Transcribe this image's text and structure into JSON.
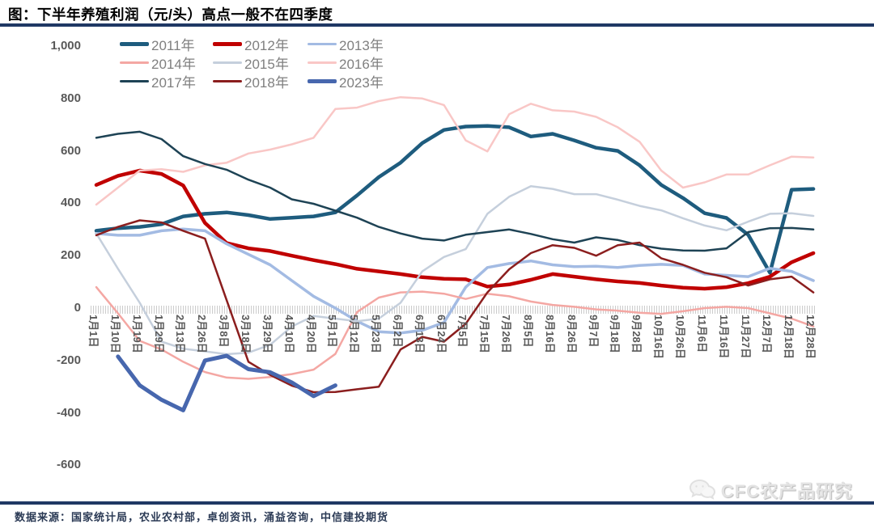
{
  "header": {
    "title": "图：下半年养殖利润（元/头）高点一般不在四季度"
  },
  "footer": {
    "source": "数据来源：国家统计局，农业农村部，卓创资讯，涌益咨询，中信建投期货"
  },
  "watermark": {
    "label": "CFC农产品研究",
    "icon": "wechat-chat-bubbles-icon"
  },
  "colors": {
    "rule": "#1F3864",
    "axis_text": "#595959",
    "legend_text": "#7F7F7F",
    "hatch": "#CCCCCC",
    "title_text": "#000000"
  },
  "chart_data": {
    "type": "line",
    "title": "图：下半年养殖利润（元/头）高点一般不在四季度",
    "xlabel": "",
    "ylabel": "元/头",
    "ylim": [
      -600,
      1000
    ],
    "grid": false,
    "legend_position": "top",
    "y_ticks": [
      {
        "v": 1000,
        "label": "1,000"
      },
      {
        "v": 800,
        "label": "800"
      },
      {
        "v": 600,
        "label": "600"
      },
      {
        "v": 400,
        "label": "400"
      },
      {
        "v": 200,
        "label": "200"
      },
      {
        "v": 0,
        "label": "0"
      },
      {
        "v": -200,
        "label": "-200"
      },
      {
        "v": -400,
        "label": "-400"
      },
      {
        "v": -600,
        "label": "-600"
      }
    ],
    "x_labels": [
      "1月1日",
      "1月10日",
      "1月19日",
      "1月29日",
      "2月13日",
      "2月26日",
      "3月8日",
      "3月18日",
      "3月29日",
      "4月10日",
      "4月20日",
      "5月1日",
      "5月12日",
      "5月23日",
      "6月2日",
      "6月13日",
      "6月24日",
      "7月5日",
      "7月15日",
      "7月26日",
      "8月5日",
      "8月16日",
      "8月26日",
      "9月7日",
      "9月18日",
      "9月28日",
      "10月16日",
      "10月26日",
      "11月6日",
      "11月16日",
      "11月27日",
      "12月7日",
      "12月18日",
      "12月28日"
    ],
    "series": [
      {
        "name": "2011年",
        "color": "#1E5C7E",
        "width": 4.5,
        "values": [
          295,
          305,
          310,
          320,
          350,
          360,
          365,
          355,
          340,
          345,
          350,
          365,
          430,
          500,
          555,
          630,
          680,
          693,
          695,
          690,
          655,
          665,
          640,
          612,
          600,
          545,
          470,
          420,
          362,
          344,
          280,
          135,
          452,
          455
        ]
      },
      {
        "name": "2012年",
        "color": "#C00000",
        "width": 4.5,
        "values": [
          470,
          505,
          525,
          512,
          468,
          325,
          248,
          228,
          218,
          200,
          183,
          168,
          150,
          140,
          130,
          118,
          112,
          110,
          82,
          90,
          108,
          130,
          120,
          110,
          102,
          96,
          86,
          78,
          74,
          80,
          95,
          120,
          175,
          210
        ]
      },
      {
        "name": "2013年",
        "color": "#A3BBE3",
        "width": 3.5,
        "values": [
          285,
          278,
          278,
          295,
          302,
          295,
          245,
          205,
          165,
          105,
          45,
          0,
          -50,
          -90,
          -95,
          -85,
          -55,
          80,
          155,
          170,
          180,
          165,
          158,
          160,
          155,
          163,
          167,
          163,
          130,
          125,
          120,
          152,
          140,
          105
        ]
      },
      {
        "name": "2014年",
        "color": "#F4A7A3",
        "width": 2.5,
        "values": [
          80,
          -20,
          -125,
          -158,
          -205,
          -244,
          -265,
          -270,
          -263,
          -252,
          -235,
          -175,
          -15,
          40,
          60,
          63,
          55,
          35,
          55,
          45,
          25,
          12,
          5,
          -5,
          -10,
          -18,
          -22,
          -12,
          0,
          5,
          0,
          -20,
          -40,
          -70
        ]
      },
      {
        "name": "2015年",
        "color": "#C5CFDC",
        "width": 2.5,
        "values": [
          285,
          150,
          20,
          -128,
          -155,
          -165,
          -176,
          -170,
          -140,
          -70,
          -30,
          -40,
          -50,
          -40,
          20,
          140,
          195,
          225,
          360,
          425,
          465,
          455,
          435,
          435,
          414,
          390,
          373,
          343,
          315,
          297,
          330,
          360,
          362,
          352
        ]
      },
      {
        "name": "2016年",
        "color": "#F9C7C6",
        "width": 2.5,
        "values": [
          395,
          460,
          525,
          530,
          520,
          545,
          555,
          590,
          605,
          625,
          650,
          760,
          765,
          790,
          805,
          800,
          775,
          640,
          598,
          740,
          780,
          755,
          750,
          730,
          690,
          635,
          525,
          460,
          480,
          510,
          510,
          545,
          578,
          575
        ]
      },
      {
        "name": "2017年",
        "color": "#1E4355",
        "width": 2.5,
        "values": [
          650,
          665,
          673,
          645,
          580,
          550,
          528,
          490,
          460,
          415,
          398,
          372,
          345,
          310,
          285,
          265,
          258,
          280,
          290,
          300,
          283,
          263,
          250,
          270,
          260,
          240,
          227,
          220,
          219,
          228,
          290,
          305,
          306,
          300
        ]
      },
      {
        "name": "2018年",
        "color": "#8B1E1E",
        "width": 2.5,
        "values": [
          278,
          310,
          335,
          327,
          295,
          265,
          30,
          -205,
          -255,
          -296,
          -321,
          -320,
          -310,
          -300,
          -158,
          -110,
          -128,
          -60,
          60,
          148,
          210,
          240,
          230,
          200,
          240,
          250,
          190,
          165,
          135,
          118,
          86,
          110,
          120,
          60
        ]
      },
      {
        "name": "2023年",
        "color": "#4767AE",
        "width": 5,
        "values": [
          null,
          -185,
          -295,
          -350,
          -390,
          -200,
          -182,
          -233,
          -245,
          -284,
          -336,
          -295,
          null,
          null,
          null,
          null,
          null,
          null,
          null,
          null,
          null,
          null,
          null,
          null,
          null,
          null,
          null,
          null,
          null,
          null,
          null,
          null,
          null,
          null
        ]
      }
    ]
  }
}
